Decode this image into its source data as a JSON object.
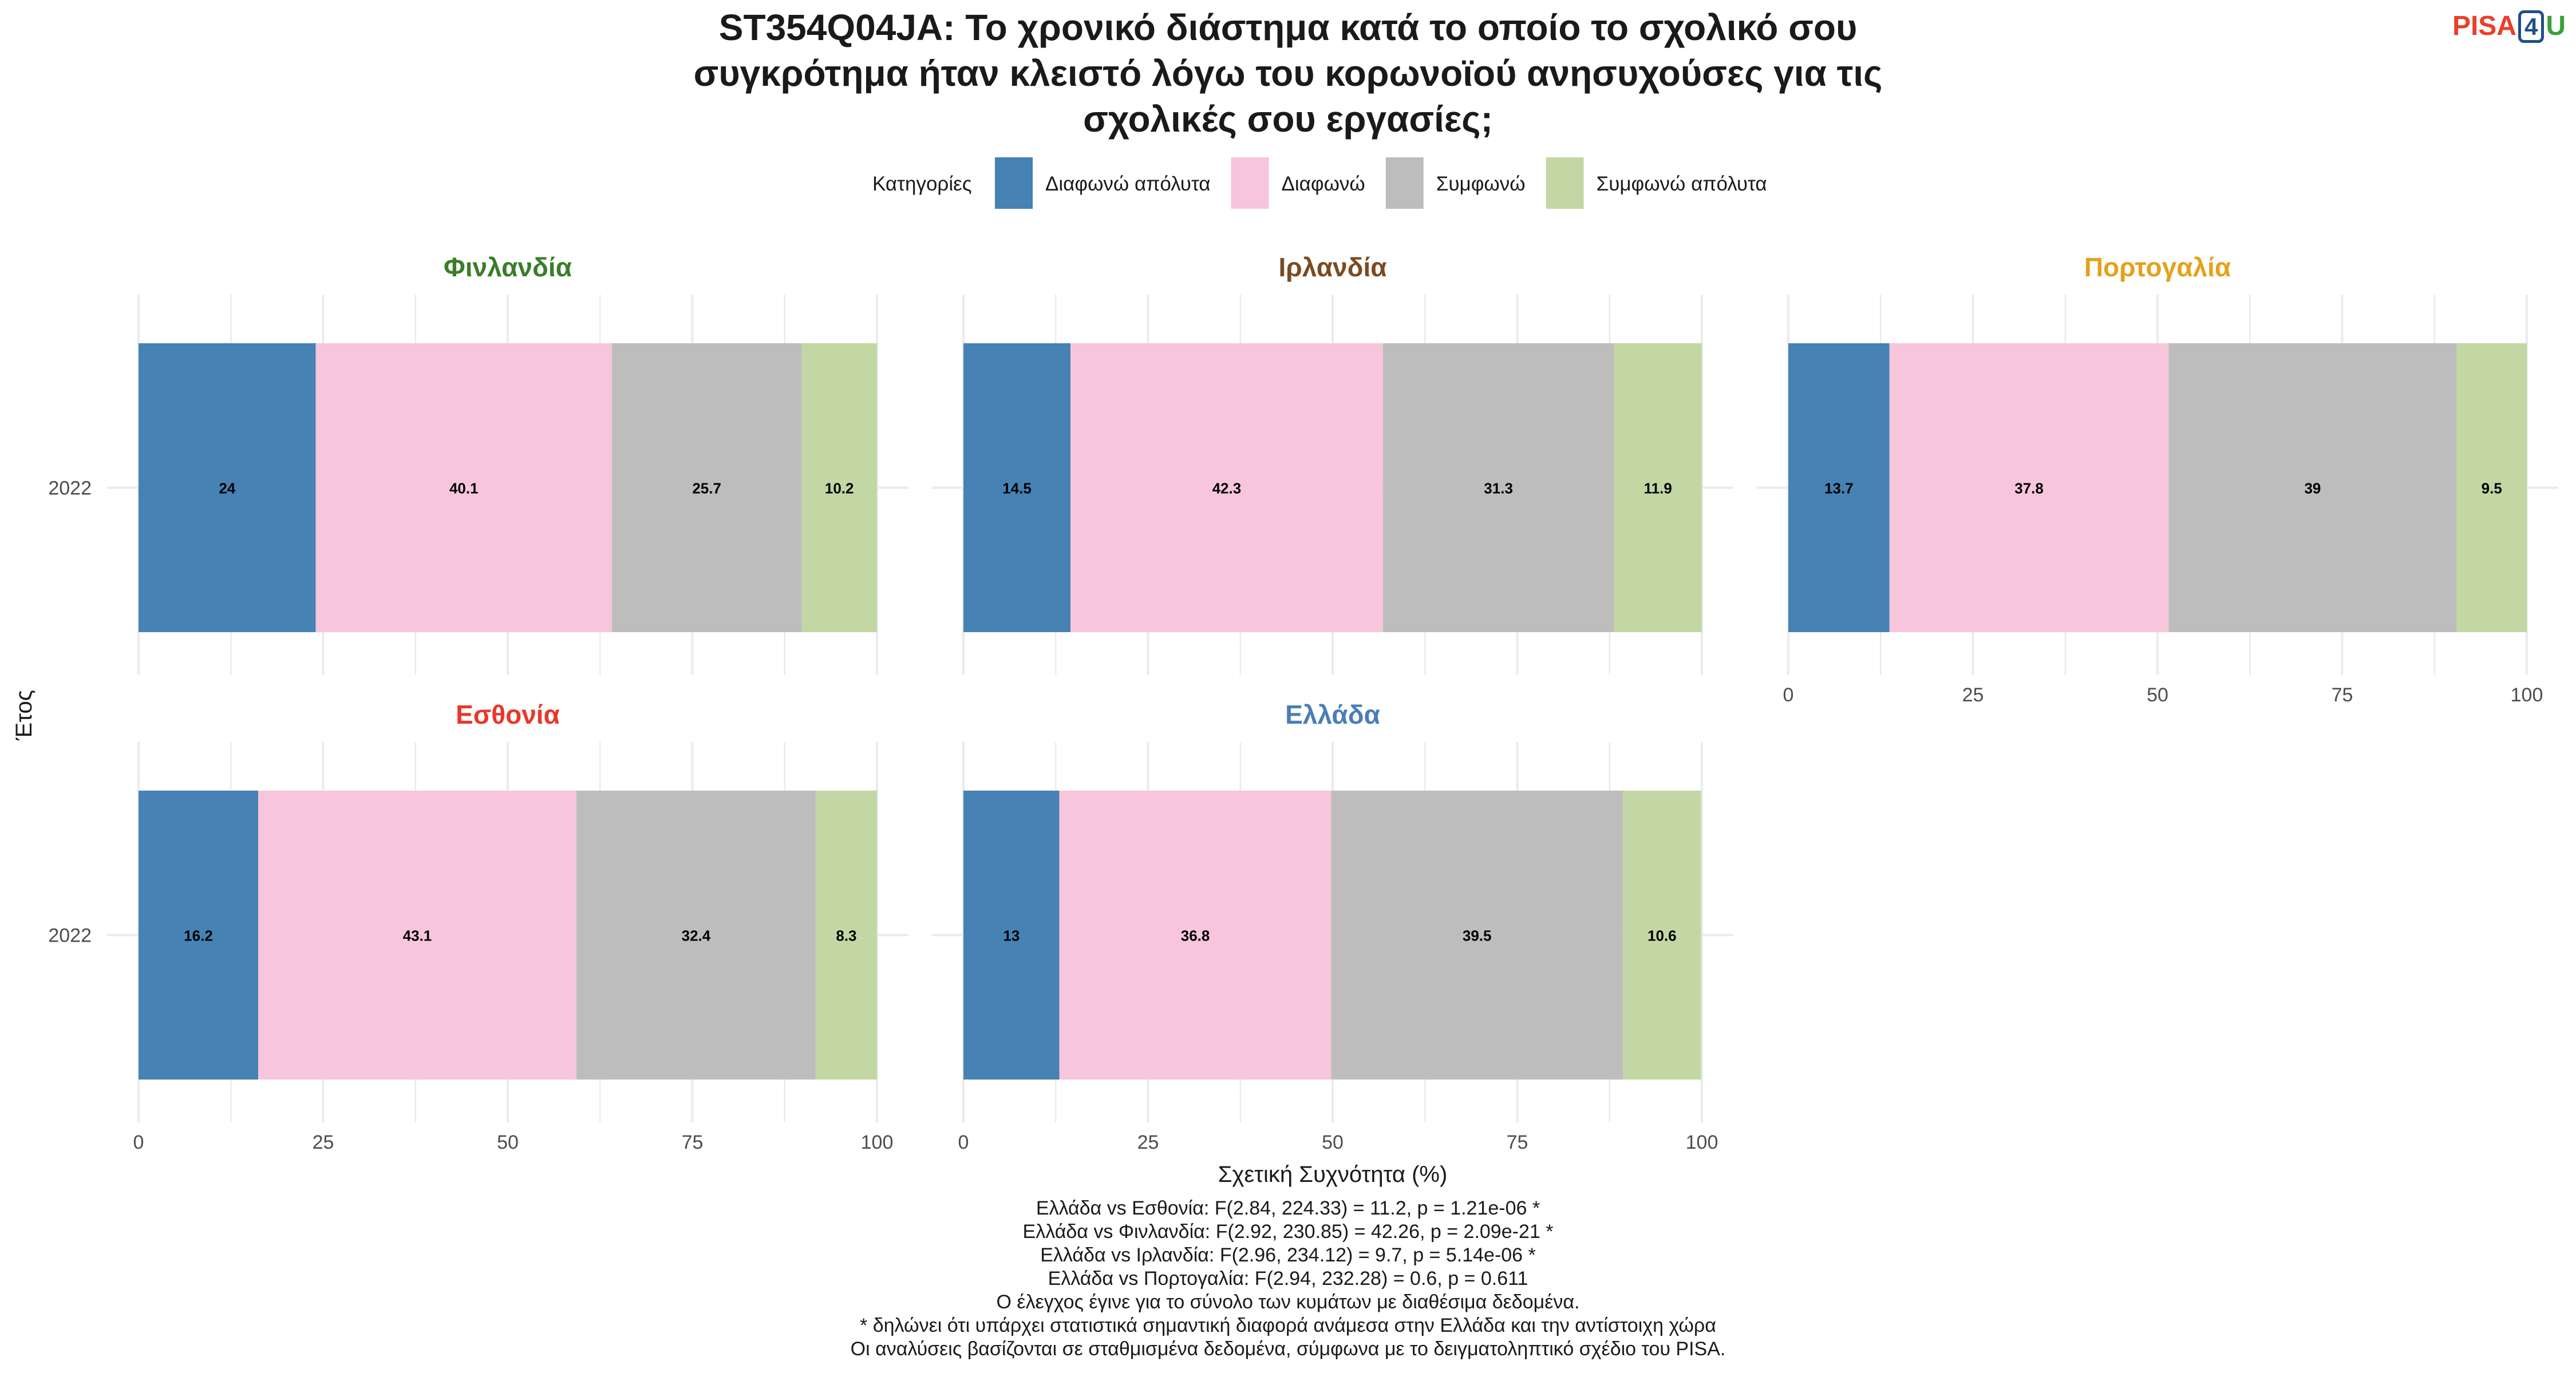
{
  "logo": {
    "part1": "PISA",
    "part2": "4",
    "part3": "U"
  },
  "chart_data": {
    "type": "bar",
    "orientation": "horizontal",
    "stacked": true,
    "title_lines": [
      "ST354Q04JA: Το χρονικό διάστημα κατά το οποίο το σχολικό σου",
      "συγκρότημα ήταν κλειστό λόγω του κορωνοϊού ανησυχούσες για τις",
      "σχολικές σου εργασίες;"
    ],
    "xlabel": "Σχετική Συχνότητα (%)",
    "ylabel": "Έτος",
    "xlim": [
      0,
      100
    ],
    "xticks": [
      0,
      25,
      50,
      75,
      100
    ],
    "grid": true,
    "legend": {
      "title": "Κατηγορίες",
      "position": "top",
      "items": [
        {
          "label": "Διαφωνώ απόλυτα",
          "color": "#4682b4"
        },
        {
          "label": "Διαφωνώ",
          "color": "#f7c6dc"
        },
        {
          "label": "Συμφωνώ",
          "color": "#bdbdbd"
        },
        {
          "label": "Συμφωνώ απόλυτα",
          "color": "#c3d7a4"
        }
      ]
    },
    "panels": [
      {
        "country": "Φινλανδία",
        "color": "#3a7d2a",
        "year": "2022",
        "values": [
          24,
          40.1,
          25.7,
          10.2
        ],
        "labels": [
          "24",
          "40.1",
          "25.7",
          "10.2"
        ]
      },
      {
        "country": "Ιρλανδία",
        "color": "#7b4a22",
        "year": "2022",
        "values": [
          14.5,
          42.3,
          31.3,
          11.9
        ],
        "labels": [
          "14.5",
          "42.3",
          "31.3",
          "11.9"
        ]
      },
      {
        "country": "Πορτογαλία",
        "color": "#e5a11a",
        "year": "2022",
        "values": [
          13.7,
          37.8,
          39,
          9.5
        ],
        "labels": [
          "13.7",
          "37.8",
          "39",
          "9.5"
        ]
      },
      {
        "country": "Εσθονία",
        "color": "#e8372a",
        "year": "2022",
        "values": [
          16.2,
          43.1,
          32.4,
          8.3
        ],
        "labels": [
          "16.2",
          "43.1",
          "32.4",
          "8.3"
        ]
      },
      {
        "country": "Ελλάδα",
        "color": "#4a7eb5",
        "year": "2022",
        "values": [
          13,
          36.8,
          39.5,
          10.6
        ],
        "labels": [
          "13",
          "36.8",
          "39.5",
          "10.6"
        ]
      }
    ]
  },
  "footnotes": [
    "Ελλάδα vs Εσθονία: F(2.84, 224.33) = 11.2, p = 1.21e-06 *",
    "Ελλάδα vs Φινλανδία: F(2.92, 230.85) = 42.26, p = 2.09e-21 *",
    "Ελλάδα vs Ιρλανδία: F(2.96, 234.12) = 9.7, p = 5.14e-06 *",
    "Ελλάδα vs Πορτογαλία: F(2.94, 232.28) = 0.6, p = 0.611",
    "Ο έλεγχος έγινε για το σύνολο των κυμάτων με διαθέσιμα δεδομένα.",
    "* δηλώνει ότι υπάρχει στατιστικά σημαντική διαφορά ανάμεσα στην Ελλάδα και την αντίστοιχη χώρα",
    "Οι αναλύσεις βασίζονται σε σταθμισμένα δεδομένα, σύμφωνα με το δειγματοληπτικό σχέδιο του PISA."
  ]
}
